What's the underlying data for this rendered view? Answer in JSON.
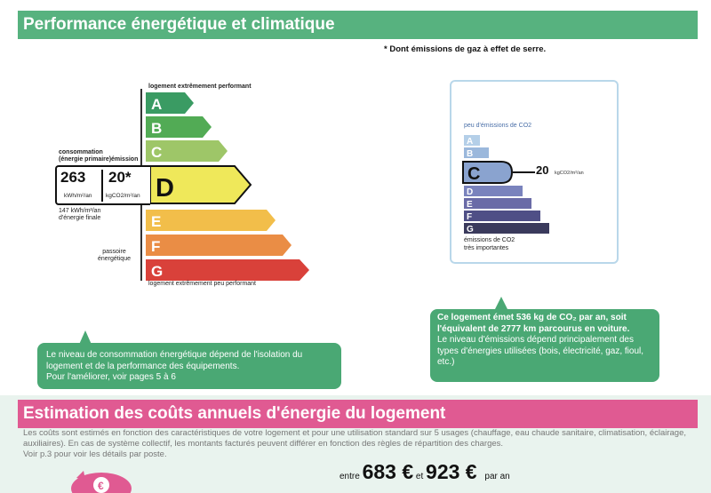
{
  "section1": {
    "title": "Performance énergétique et climatique"
  },
  "footnote": "* Dont émissions de gaz à effet de serre.",
  "energy_scale": {
    "top_label": "logement extrêmement performant",
    "bottom_label": "logement extrêmement peu performant",
    "classes": [
      {
        "letter": "A",
        "color": "#3a9b63"
      },
      {
        "letter": "B",
        "color": "#52ab55"
      },
      {
        "letter": "C",
        "color": "#9ec668"
      },
      {
        "letter": "D",
        "color": "#efe85a"
      },
      {
        "letter": "E",
        "color": "#f2be4a"
      },
      {
        "letter": "F",
        "color": "#ea8d45"
      },
      {
        "letter": "G",
        "color": "#d9413a"
      }
    ],
    "current_class": "D",
    "consumption_header": "consommation\n(énergie primaire)",
    "emission_header": "émission",
    "consumption_value": "263",
    "consumption_unit": "kWh/m²/an",
    "emission_value": "20*",
    "emission_unit": "kgCO2/m²/an",
    "final_energy": "147 kWh/m²/an\nd'énergie finale",
    "passoire_label": "passoire\nénergétique"
  },
  "co2_scale": {
    "top_label": "peu d'émissions de CO2",
    "bottom_label": "émissions de CO2\ntrès importantes",
    "classes": [
      {
        "letter": "A",
        "color": "#b4cfe8"
      },
      {
        "letter": "B",
        "color": "#9bb8dc"
      },
      {
        "letter": "C",
        "color": "#8aa3cf"
      },
      {
        "letter": "D",
        "color": "#7a83bd"
      },
      {
        "letter": "E",
        "color": "#6a6ba7"
      },
      {
        "letter": "F",
        "color": "#4f4f86"
      },
      {
        "letter": "G",
        "color": "#3a3a5c"
      }
    ],
    "current_class": "C",
    "value": "20",
    "unit": "kgCO2/m²/an"
  },
  "bubble_left": "Le niveau de consommation énergétique dépend de l'isolation du logement et de la performance des équipements.\nPour l'améliorer, voir pages 5 à 6",
  "bubble_right": {
    "line1": "Ce logement émet 536  kg de CO₂ par an, soit l'équivalent de 2777 km parcourus en voiture.",
    "line2": "Le niveau d'émissions dépend principalement des types d'énergies utilisées (bois, électricité, gaz, fioul, etc.)"
  },
  "section2": {
    "title": "Estimation des coûts annuels d'énergie du logement",
    "note": "Les coûts sont estimés en fonction des caractéristiques de votre logement et pour une utilisation standard sur 5 usages (chauffage, eau chaude sanitaire, climatisation, éclairage, auxiliaires). En cas de système collectif, les montants facturés peuvent différer en fonction des règles de répartition des charges.\nVoir p.3 pour voir les détails par poste.",
    "entre": "entre",
    "low": "683 €",
    "et": "et",
    "high": "923 €",
    "par_an": "par an"
  },
  "colors": {
    "green_header": "#57b27f",
    "pink_header": "#e05a92",
    "bubble": "#4aa874"
  }
}
